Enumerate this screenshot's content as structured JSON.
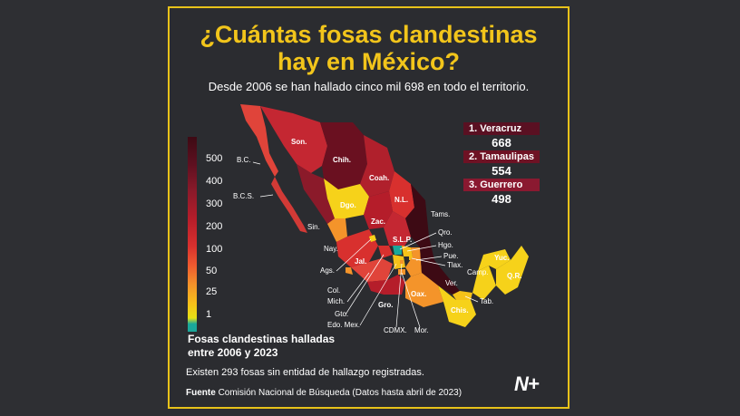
{
  "title_line1": "¿Cuántas fosas clandestinas",
  "title_line2": "hay en México?",
  "subtitle": "Desde 2006 se han hallado cinco mil 698 en todo el territorio.",
  "legend": {
    "ticks": [
      "500",
      "400",
      "300",
      "200",
      "100",
      "50",
      "25",
      "1"
    ],
    "caption_line1": "Fosas clandestinas halladas",
    "caption_line2": "entre 2006 y 2023",
    "colors": [
      "#3d0a14",
      "#8b1a2a",
      "#d8302e",
      "#f4942a",
      "#f6c219",
      "#1aa79a"
    ]
  },
  "ranking": [
    {
      "label": "1. Veracruz",
      "value": "668"
    },
    {
      "label": "2. Tamaulipas",
      "value": "554"
    },
    {
      "label": "3. Guerrero",
      "value": "498"
    }
  ],
  "states": {
    "son": "Son.",
    "chih": "Chih.",
    "coah": "Coah.",
    "bc": "B.C.",
    "bcs": "B.C.S.",
    "sin": "Sin.",
    "dgo": "Dgo.",
    "nl": "N.L.",
    "tams": "Tams.",
    "zac": "Zac.",
    "nay": "Nay.",
    "slp": "S.L.P.",
    "qro": "Qro.",
    "ags": "Ags.",
    "jal": "Jal.",
    "hgo": "Hgo.",
    "pue": "Pue.",
    "tlax": "Tlax.",
    "col": "Col.",
    "mich": "Mich.",
    "gto": "Gto.",
    "edomex": "Edo. Mex.",
    "gro": "Gro.",
    "cdmx": "CDMX.",
    "mor": "Mor.",
    "oax": "Oax.",
    "ver": "Ver.",
    "chis": "Chis.",
    "tab": "Tab.",
    "camp": "Camp.",
    "yuc": "Yuc.",
    "qr": "Q.R."
  },
  "note": "Existen 293 fosas sin entidad de hallazgo registradas.",
  "source_label": "Fuente",
  "source_text": "Comisión Nacional de Búsqueda (Datos hasta abril de 2023)",
  "logo": "N+",
  "accent_color": "#f2c51b"
}
